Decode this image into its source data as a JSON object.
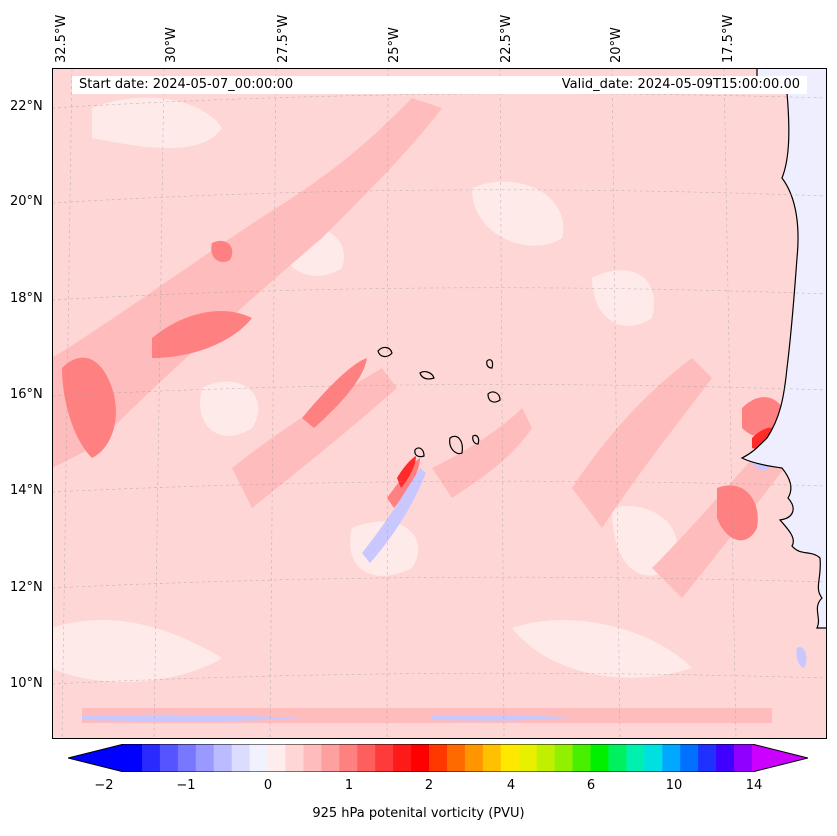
{
  "header": {
    "start_date": "Start date: 2024-05-07_00:00:00",
    "valid_date": "Valid_date: 2024-05-09T15:00:00.00"
  },
  "lon_labels": [
    "32.5°W",
    "30°W",
    "27.5°W",
    "25°W",
    "22.5°W",
    "20°W",
    "17.5°W"
  ],
  "lat_labels": [
    "22°N",
    "20°N",
    "18°N",
    "16°N",
    "14°N",
    "12°N",
    "10°N"
  ],
  "colorbar": {
    "label": "925 hPa potenital vorticity (PVU)",
    "ticks": [
      "−2",
      "−1",
      "0",
      "1",
      "2",
      "4",
      "6",
      "10",
      "14"
    ],
    "colors": [
      "#0000ff",
      "#2a2aff",
      "#5555ff",
      "#7777ff",
      "#9999ff",
      "#bbbbff",
      "#dcdcff",
      "#f2f2ff",
      "#ffecec",
      "#ffd6d6",
      "#ffbcbc",
      "#ffa0a0",
      "#ff8080",
      "#ff5e5e",
      "#ff3a3a",
      "#ff1a1a",
      "#ff0000",
      "#ff3800",
      "#ff6a00",
      "#ff9600",
      "#ffc000",
      "#ffe800",
      "#e8f000",
      "#c0f000",
      "#90f000",
      "#48f000",
      "#00f000",
      "#00f060",
      "#00f0b0",
      "#00e0e0",
      "#00a8ff",
      "#0070ff",
      "#2030ff",
      "#4000ff",
      "#9000ff"
    ],
    "under_color": "#0000ff",
    "over_color": "#cc00ff"
  },
  "map": {
    "background_color": "#ffd6d6",
    "ocean_light_color": "#ffeaea",
    "mid_color": "#ffbcbc",
    "strong_color": "#ff8080",
    "peak_color": "#ff2a2a",
    "negative_color": "#c8c8ff",
    "land_color": "#eeeeff"
  }
}
